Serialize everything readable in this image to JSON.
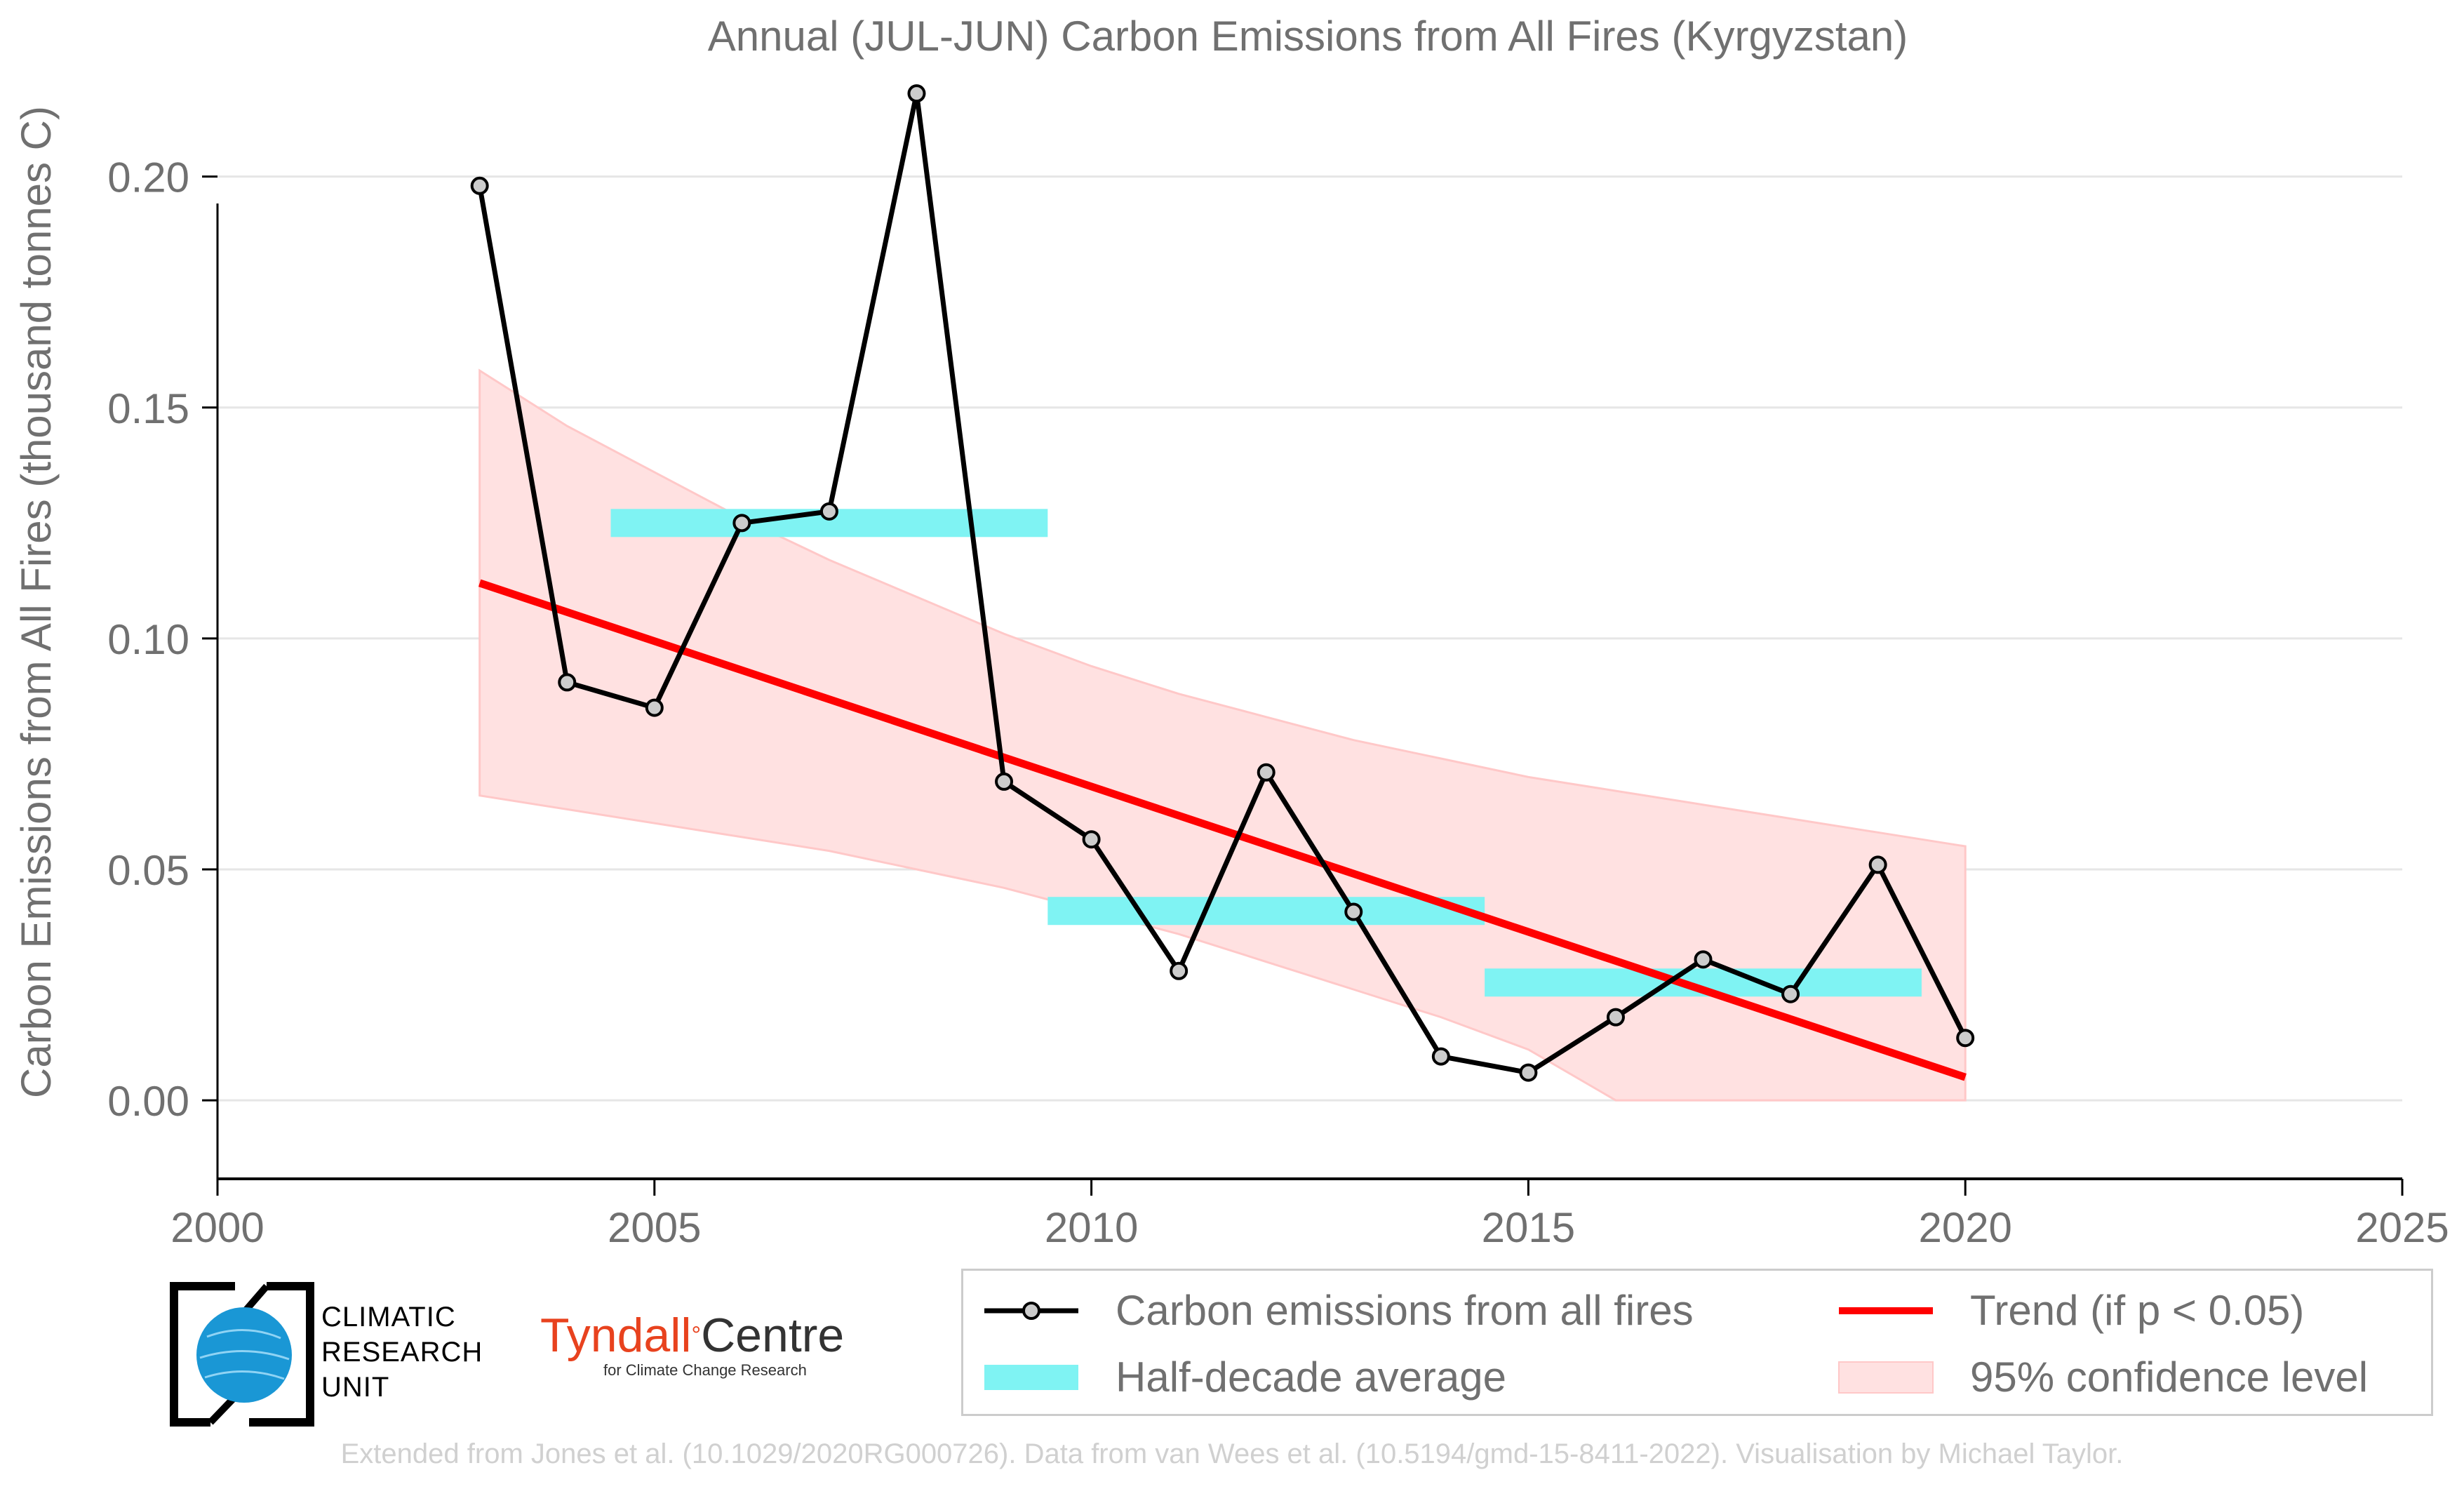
{
  "chart_data": {
    "type": "line",
    "title": "Annual (JUL-JUN) Carbon Emissions from All Fires (Kyrgyzstan)",
    "ylabel": "Carbon Emissions from All Fires (thousand tonnes C)",
    "xlabel": "",
    "xlim": [
      2000,
      2025
    ],
    "ylim": [
      -0.017,
      0.22
    ],
    "xticks": [
      2000,
      2005,
      2010,
      2015,
      2020,
      2025
    ],
    "yticks": [
      0.0,
      0.05,
      0.1,
      0.15,
      0.2
    ],
    "ytick_labels": [
      "0.00",
      "0.05",
      "0.10",
      "0.15",
      "0.20"
    ],
    "grid": "horizontal",
    "legend_position": "bottom",
    "series": [
      {
        "name": "Carbon emissions from all fires",
        "color": "#000000",
        "x": [
          2003,
          2004,
          2005,
          2006,
          2007,
          2008,
          2009,
          2010,
          2011,
          2012,
          2013,
          2014,
          2015,
          2016,
          2017,
          2018,
          2019,
          2020
        ],
        "y": [
          0.198,
          0.0905,
          0.085,
          0.125,
          0.1275,
          0.218,
          0.069,
          0.0565,
          0.028,
          0.071,
          0.0408,
          0.0095,
          0.006,
          0.018,
          0.0305,
          0.023,
          0.051,
          0.0135
        ]
      }
    ],
    "half_decade_average": {
      "name": "Half-decade average",
      "color": "#7ff3f3",
      "segments": [
        {
          "x0": 2004.5,
          "x1": 2009.5,
          "y": 0.125
        },
        {
          "x0": 2009.5,
          "x1": 2014.5,
          "y": 0.041
        },
        {
          "x0": 2014.5,
          "x1": 2019.5,
          "y": 0.0255
        }
      ]
    },
    "trend": {
      "name": "Trend (if p < 0.05)",
      "color": "#ff0000",
      "x": [
        2003,
        2020
      ],
      "y": [
        0.112,
        0.005
      ]
    },
    "confidence_band": {
      "name": "95% confidence level",
      "color": "#ffe1e1",
      "x": [
        2003,
        2004,
        2005,
        2006,
        2007,
        2008,
        2009,
        2010,
        2011,
        2012,
        2013,
        2014,
        2015,
        2016,
        2017,
        2018,
        2019,
        2020
      ],
      "upper": [
        0.158,
        0.146,
        0.136,
        0.126,
        0.117,
        0.109,
        0.101,
        0.094,
        0.088,
        0.083,
        0.078,
        0.074,
        0.07,
        0.067,
        0.064,
        0.061,
        0.058,
        0.055
      ],
      "lower": [
        0.066,
        0.063,
        0.06,
        0.057,
        0.054,
        0.05,
        0.046,
        0.041,
        0.036,
        0.03,
        0.024,
        0.018,
        0.011,
        0.0,
        0.0,
        0.0,
        0.0,
        0.0
      ]
    }
  },
  "logos": {
    "cru_lines": [
      "CLIMATIC",
      "RESEARCH",
      "UNIT"
    ],
    "tyndall_name": "Tyndall",
    "tyndall_degree": "°",
    "tyndall_centre": "Centre",
    "tyndall_sub": "for Climate Change Research"
  },
  "credit": "Extended from Jones et al. (10.1029/2020RG000726). Data from van Wees et al. (10.5194/gmd-15-8411-2022). Visualisation by Michael Taylor."
}
